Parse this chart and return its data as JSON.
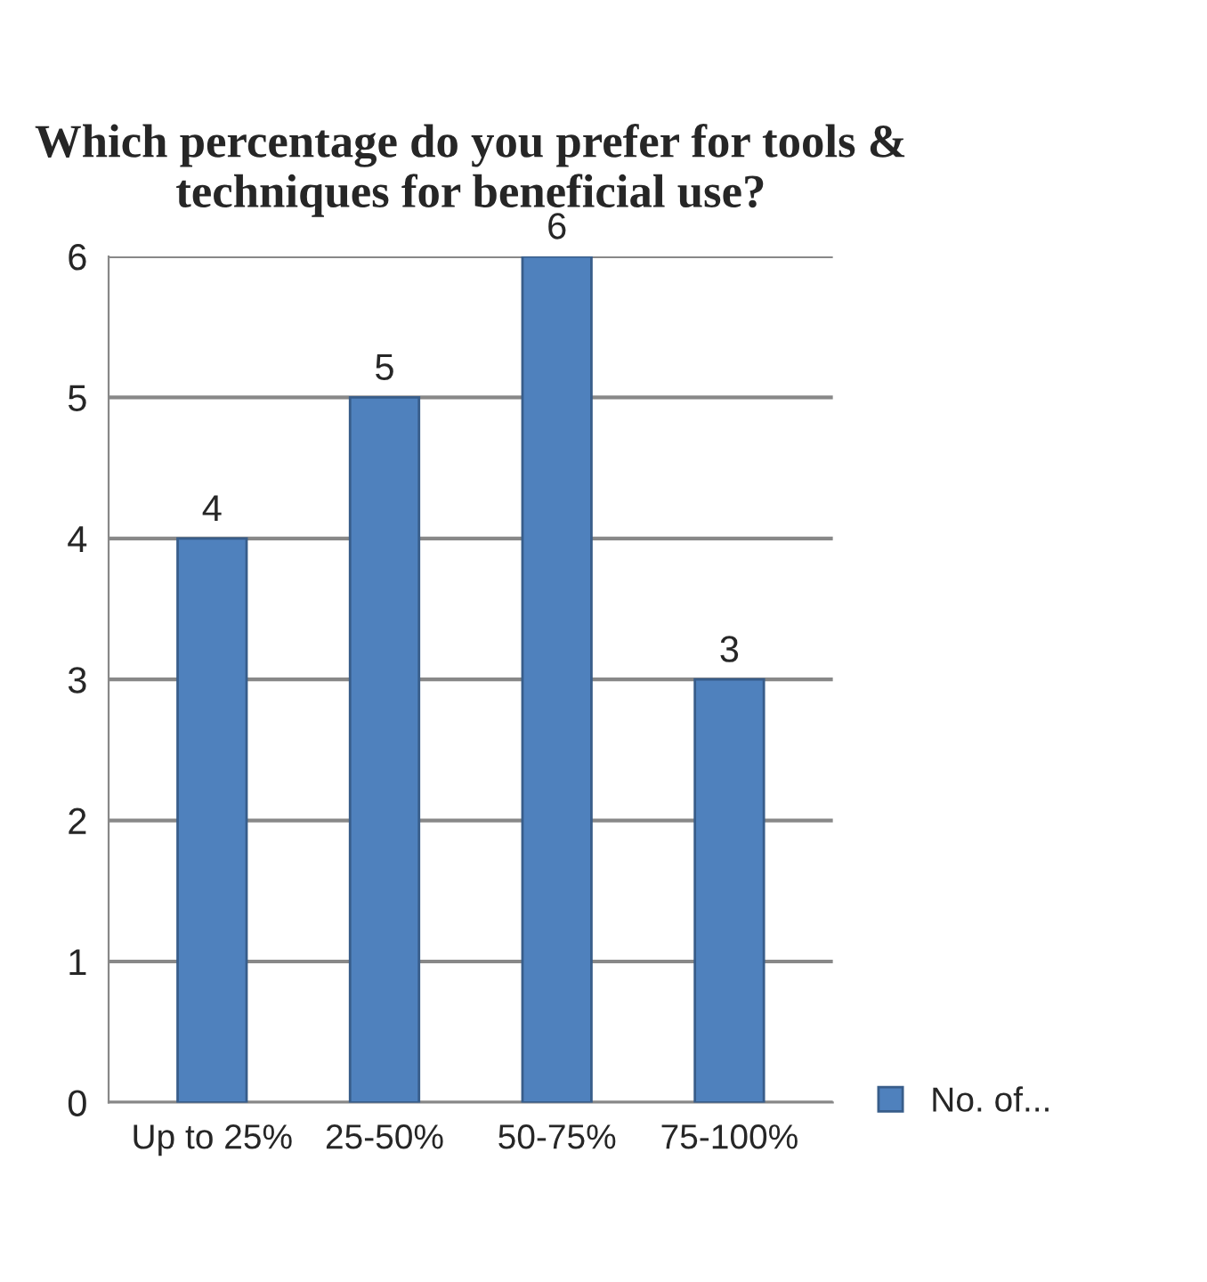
{
  "chart_data": {
    "type": "bar",
    "title": "Which percentage do you prefer for tools &\ntechniques for beneficial use?",
    "categories": [
      "Up to 25%",
      "25-50%",
      "50-75%",
      "75-100%"
    ],
    "series": [
      {
        "name": "No. of...",
        "color": "#4f81bd",
        "values": [
          4,
          5,
          6,
          3
        ]
      }
    ],
    "ylim": [
      0,
      6
    ],
    "yticks": [
      0,
      1,
      2,
      3,
      4,
      5,
      6
    ],
    "grid": "y",
    "legend": "right",
    "data_labels": true
  }
}
